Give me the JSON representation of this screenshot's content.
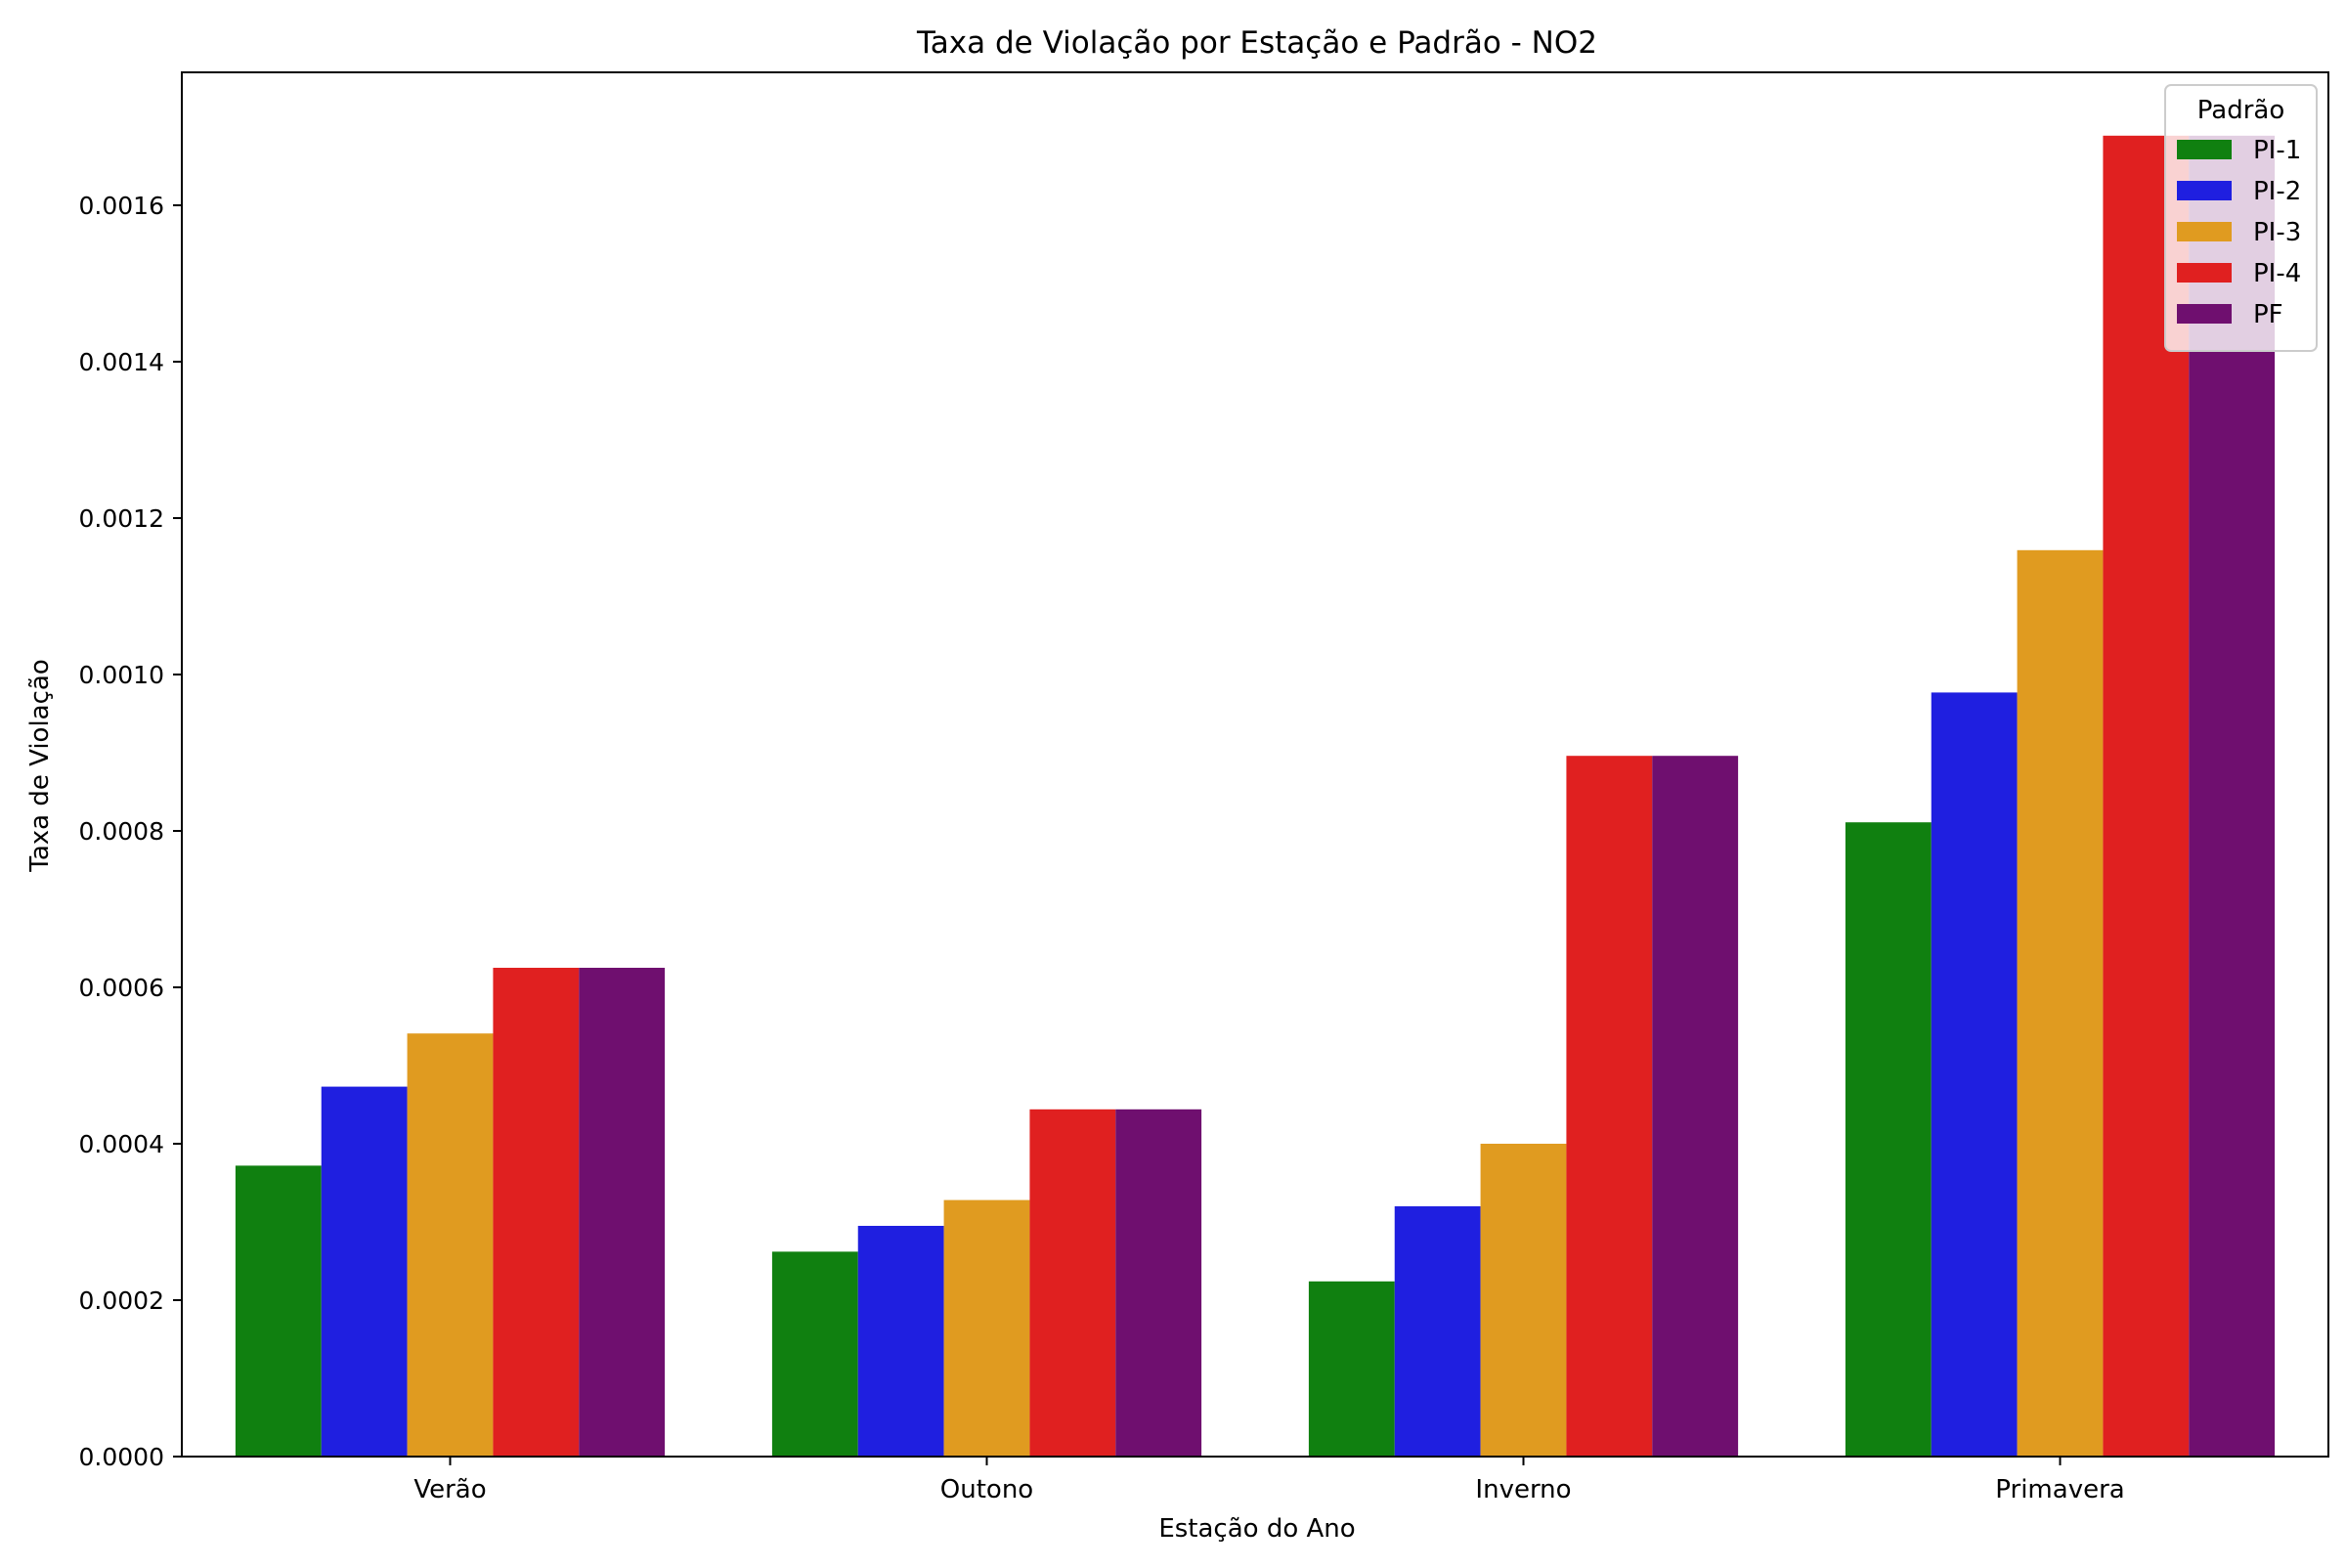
{
  "chart_data": {
    "type": "bar",
    "title": "Taxa de Violação por Estação e Padrão - NO2",
    "xlabel": "Estação do Ano",
    "ylabel": "Taxa de Violação",
    "categories": [
      "Verão",
      "Outono",
      "Inverno",
      "Primavera"
    ],
    "ylim": [
      0,
      0.00177
    ],
    "yticks": [
      "0.0000",
      "0.0002",
      "0.0004",
      "0.0006",
      "0.0008",
      "0.0010",
      "0.0012",
      "0.0014",
      "0.0016"
    ],
    "ytick_values": [
      0,
      0.0002,
      0.0004,
      0.0006,
      0.0008,
      0.001,
      0.0012,
      0.0014,
      0.0016
    ],
    "grid": false,
    "legend": {
      "title": "Padrão",
      "position": "top-right"
    },
    "series": [
      {
        "name": "PI-1",
        "color": "#108010",
        "values": [
          0.000372,
          0.000262,
          0.000224,
          0.000811
        ]
      },
      {
        "name": "PI-2",
        "color": "#1f1fe0",
        "values": [
          0.000473,
          0.000295,
          0.00032,
          0.000977
        ]
      },
      {
        "name": "PI-3",
        "color": "#e09b20",
        "values": [
          0.000541,
          0.000328,
          0.0004,
          0.001159
        ]
      },
      {
        "name": "PI-4",
        "color": "#e02020",
        "values": [
          0.000625,
          0.000444,
          0.000896,
          0.001689
        ]
      },
      {
        "name": "PF",
        "color": "#6f0f6f",
        "values": [
          0.000625,
          0.000444,
          0.000896,
          0.001689
        ]
      }
    ]
  }
}
